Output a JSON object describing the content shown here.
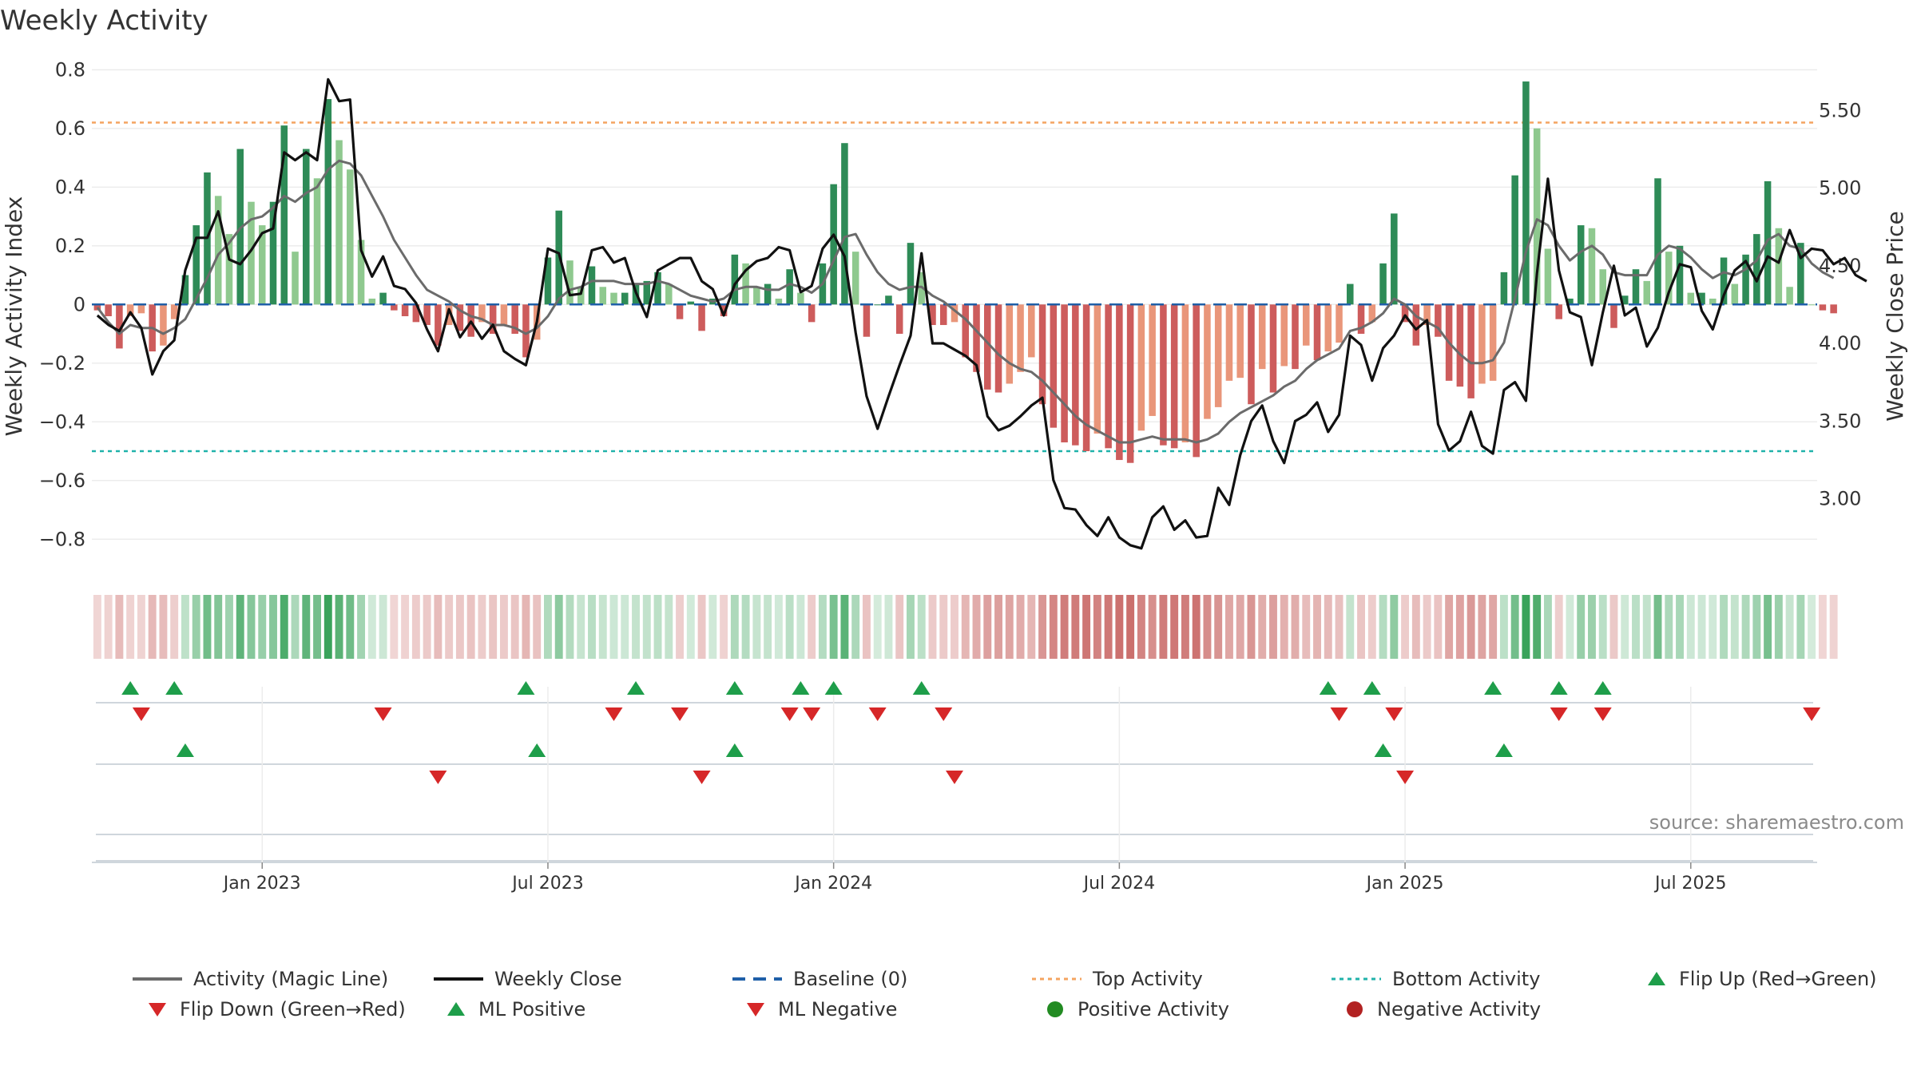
{
  "title": "Weekly Activity",
  "source": "source: sharemaestro.com",
  "colors": {
    "pos_strong": "#2e8b57",
    "pos_light": "#8fc98f",
    "neg_strong": "#cd5c5c",
    "neg_light": "#e9967a",
    "magic": "#6b6b6b",
    "close": "#111111",
    "baseline": "#1f5fa8",
    "top": "#f4a460",
    "bottom": "#20b2aa",
    "up": "#1e9e4a",
    "down": "#d62728",
    "dot_pos": "#228b22",
    "dot_neg": "#b22222"
  },
  "legend": [
    {
      "label": "Activity (Magic Line)",
      "icon": "gray-line"
    },
    {
      "label": "Weekly Close",
      "icon": "black-line"
    },
    {
      "label": "Baseline (0)",
      "icon": "dashed-blue-line"
    },
    {
      "label": "Top Activity",
      "icon": "dotted-orange-line"
    },
    {
      "label": "Bottom Activity",
      "icon": "dotted-teal-line"
    },
    {
      "label": "Flip Up (Red→Green)",
      "icon": "green-triangle-up"
    },
    {
      "label": "Flip Down (Green→Red)",
      "icon": "red-triangle-down"
    },
    {
      "label": "ML Positive",
      "icon": "green-triangle-up"
    },
    {
      "label": "ML Negative",
      "icon": "red-triangle-down"
    },
    {
      "label": "Positive Activity",
      "icon": "green-dot"
    },
    {
      "label": "Negative Activity",
      "icon": "red-dot"
    }
  ],
  "chart_data": {
    "type": "bar",
    "title": "Weekly Activity",
    "ylabel_left": "Weekly Activity Index",
    "ylabel_right": "Weekly Close Price",
    "ylim_left": [
      -0.9,
      0.82
    ],
    "ylim_right": [
      2.55,
      5.8
    ],
    "yticks_left": [
      {
        "v": 0.8,
        "label": "0.8"
      },
      {
        "v": 0.6,
        "label": "0.6"
      },
      {
        "v": 0.4,
        "label": "0.4"
      },
      {
        "v": 0.2,
        "label": "0.2"
      },
      {
        "v": 0,
        "label": "0"
      },
      {
        "v": -0.2,
        "label": "−0.2"
      },
      {
        "v": -0.4,
        "label": "−0.4"
      },
      {
        "v": -0.6,
        "label": "−0.6"
      },
      {
        "v": -0.8,
        "label": "−0.8"
      }
    ],
    "yticks_right": [
      {
        "v": 5.5,
        "label": "5.50"
      },
      {
        "v": 5.0,
        "label": "5.00"
      },
      {
        "v": 4.5,
        "label": "4.50"
      },
      {
        "v": 4.0,
        "label": "4.00"
      },
      {
        "v": 3.5,
        "label": "3.50"
      },
      {
        "v": 3.0,
        "label": "3.00"
      }
    ],
    "x_start_week": -0.5,
    "x_end_week": 156.5,
    "xticks": [
      {
        "week": 15,
        "label": "Jan 2023"
      },
      {
        "week": 41,
        "label": "Jul 2023"
      },
      {
        "week": 67,
        "label": "Jan 2024"
      },
      {
        "week": 93,
        "label": "Jul 2024"
      },
      {
        "week": 119,
        "label": "Jan 2025"
      },
      {
        "week": 145,
        "label": "Jul 2025"
      }
    ],
    "top_activity": 0.62,
    "bottom_activity": -0.5,
    "baseline": 0,
    "activity": [
      -0.02,
      -0.04,
      -0.15,
      -0.04,
      -0.03,
      -0.16,
      -0.14,
      -0.05,
      0.1,
      0.27,
      0.45,
      0.37,
      0.24,
      0.53,
      0.35,
      0.27,
      0.35,
      0.61,
      0.18,
      0.53,
      0.43,
      0.7,
      0.56,
      0.46,
      0.22,
      0.02,
      0.04,
      -0.02,
      -0.04,
      -0.06,
      -0.07,
      -0.14,
      -0.07,
      -0.09,
      -0.11,
      -0.06,
      -0.1,
      -0.07,
      -0.1,
      -0.18,
      -0.12,
      0.16,
      0.32,
      0.15,
      0.06,
      0.13,
      0.06,
      0.04,
      0.04,
      0.07,
      0.08,
      0.11,
      0.07,
      -0.05,
      0.01,
      -0.09,
      0.02,
      -0.04,
      0.17,
      0.14,
      0.06,
      0.07,
      0.02,
      0.12,
      0.04,
      -0.06,
      0.14,
      0.41,
      0.55,
      0.18,
      -0.11,
      0,
      0.03,
      -0.1,
      0.21,
      0.11,
      -0.07,
      -0.07,
      -0.06,
      -0.18,
      -0.23,
      -0.29,
      -0.3,
      -0.27,
      -0.23,
      -0.18,
      -0.34,
      -0.42,
      -0.47,
      -0.48,
      -0.5,
      -0.44,
      -0.49,
      -0.53,
      -0.54,
      -0.43,
      -0.38,
      -0.48,
      -0.49,
      -0.47,
      -0.52,
      -0.39,
      -0.35,
      -0.26,
      -0.25,
      -0.34,
      -0.22,
      -0.3,
      -0.21,
      -0.22,
      -0.14,
      -0.19,
      -0.16,
      -0.13,
      0.07,
      -0.1,
      -0.06,
      0.14,
      0.31,
      -0.06,
      -0.14,
      -0.07,
      -0.11,
      -0.26,
      -0.28,
      -0.32,
      -0.27,
      -0.26,
      0.11,
      0.44,
      0.76,
      0.6,
      0.19,
      -0.05,
      0.02,
      0.27,
      0.26,
      0.12,
      -0.08,
      0.03,
      0.12,
      0.08,
      0.43,
      0.18,
      0.2,
      0.04,
      0.04,
      0.02,
      0.16,
      0.07,
      0.17,
      0.24,
      0.42,
      0.26,
      0.06,
      0.21,
      0,
      -0.02,
      -0.03
    ],
    "magic_line": [
      -0.01,
      -0.06,
      -0.1,
      -0.07,
      -0.08,
      -0.08,
      -0.1,
      -0.08,
      -0.05,
      0.02,
      0.09,
      0.17,
      0.21,
      0.26,
      0.29,
      0.3,
      0.33,
      0.37,
      0.35,
      0.38,
      0.4,
      0.46,
      0.49,
      0.48,
      0.44,
      0.37,
      0.3,
      0.22,
      0.16,
      0.1,
      0.05,
      0.03,
      0.01,
      -0.02,
      -0.04,
      -0.05,
      -0.07,
      -0.07,
      -0.08,
      -0.1,
      -0.08,
      -0.04,
      0.02,
      0.05,
      0.06,
      0.08,
      0.08,
      0.08,
      0.07,
      0.07,
      0.07,
      0.08,
      0.07,
      0.05,
      0.03,
      0.02,
      0.01,
      0.02,
      0.05,
      0.06,
      0.06,
      0.05,
      0.05,
      0.07,
      0.06,
      0.04,
      0.07,
      0.15,
      0.23,
      0.24,
      0.17,
      0.11,
      0.07,
      0.05,
      0.06,
      0.06,
      0.03,
      0.01,
      -0.02,
      -0.05,
      -0.09,
      -0.13,
      -0.17,
      -0.2,
      -0.22,
      -0.23,
      -0.26,
      -0.3,
      -0.34,
      -0.38,
      -0.41,
      -0.43,
      -0.45,
      -0.47,
      -0.47,
      -0.46,
      -0.45,
      -0.46,
      -0.46,
      -0.46,
      -0.47,
      -0.46,
      -0.44,
      -0.4,
      -0.37,
      -0.35,
      -0.33,
      -0.31,
      -0.28,
      -0.26,
      -0.22,
      -0.19,
      -0.17,
      -0.15,
      -0.09,
      -0.08,
      -0.06,
      -0.03,
      0.02,
      0,
      -0.04,
      -0.06,
      -0.08,
      -0.13,
      -0.17,
      -0.2,
      -0.2,
      -0.19,
      -0.13,
      0.02,
      0.18,
      0.29,
      0.27,
      0.2,
      0.15,
      0.18,
      0.2,
      0.17,
      0.11,
      0.1,
      0.1,
      0.1,
      0.17,
      0.2,
      0.19,
      0.16,
      0.12,
      0.09,
      0.11,
      0.1,
      0.12,
      0.15,
      0.22,
      0.24,
      0.2,
      0.19,
      0.14,
      0.11,
      0.09
    ],
    "weekly_close": [
      4.18,
      4.12,
      4.08,
      4.2,
      4.1,
      3.8,
      3.95,
      4.02,
      4.47,
      4.68,
      4.68,
      4.85,
      4.54,
      4.51,
      4.6,
      4.71,
      4.74,
      5.23,
      5.18,
      5.23,
      5.18,
      5.7,
      5.56,
      5.57,
      4.6,
      4.43,
      4.56,
      4.37,
      4.35,
      4.26,
      4.09,
      3.95,
      4.22,
      4.04,
      4.14,
      4.03,
      4.12,
      3.95,
      3.9,
      3.86,
      4.14,
      4.61,
      4.58,
      4.31,
      4.32,
      4.6,
      4.62,
      4.52,
      4.55,
      4.33,
      4.17,
      4.47,
      4.51,
      4.55,
      4.55,
      4.4,
      4.35,
      4.18,
      4.38,
      4.47,
      4.53,
      4.55,
      4.62,
      4.6,
      4.33,
      4.37,
      4.61,
      4.7,
      4.56,
      4.07,
      3.66,
      3.45,
      3.66,
      3.86,
      4.05,
      4.58,
      4.0,
      4.0,
      3.96,
      3.92,
      3.86,
      3.53,
      3.44,
      3.47,
      3.53,
      3.6,
      3.65,
      3.12,
      2.94,
      2.93,
      2.83,
      2.76,
      2.88,
      2.75,
      2.7,
      2.68,
      2.88,
      2.95,
      2.8,
      2.86,
      2.75,
      2.76,
      3.07,
      2.96,
      3.28,
      3.5,
      3.6,
      3.37,
      3.23,
      3.5,
      3.54,
      3.62,
      3.43,
      3.54,
      4.05,
      3.99,
      3.76,
      3.97,
      4.05,
      4.18,
      4.09,
      4.15,
      3.48,
      3.31,
      3.37,
      3.56,
      3.34,
      3.29,
      3.7,
      3.75,
      3.63,
      4.45,
      5.06,
      4.47,
      4.2,
      4.17,
      3.86,
      4.2,
      4.5,
      4.18,
      4.23,
      3.98,
      4.1,
      4.33,
      4.51,
      4.49,
      4.21,
      4.09,
      4.31,
      4.47,
      4.53,
      4.4,
      4.56,
      4.52,
      4.73,
      4.55,
      4.61,
      4.6,
      4.51,
      4.55,
      4.44,
      4.4
    ],
    "events": {
      "flip_up": [
        3,
        7,
        39,
        49,
        58,
        64,
        67,
        75,
        112,
        116,
        127,
        133,
        137
      ],
      "flip_down": [
        4,
        26,
        47,
        53,
        63,
        65,
        71,
        77,
        113,
        118,
        133,
        137,
        156
      ],
      "ml_positive": [
        8,
        40,
        58,
        117,
        128
      ],
      "ml_negative": [
        31,
        55,
        78,
        119
      ]
    }
  }
}
